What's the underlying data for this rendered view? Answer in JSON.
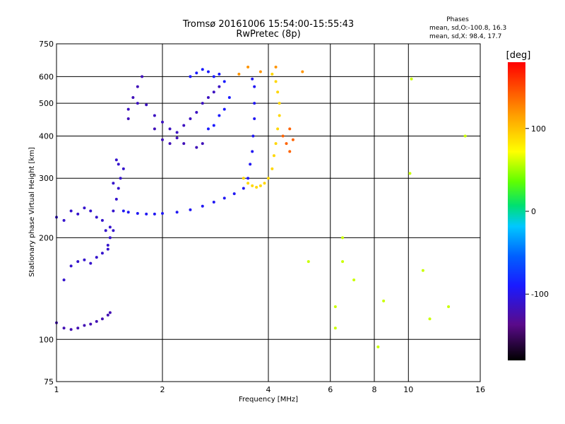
{
  "title_line1": "Tromsø 20161006 15:54:00-15:55:43",
  "title_line2": "RwPretec (8p)",
  "stats": {
    "heading": "Phases",
    "line1": "mean, sd,O:-100.8, 16.3",
    "line2": "mean, sd,X:  98.4, 17.7"
  },
  "chart_data": {
    "type": "scatter",
    "xlabel": "Frequency [MHz]",
    "ylabel": "Stationary phase Virtual Height [km]",
    "x_scale": "log",
    "y_scale": "log",
    "xlim": [
      1,
      16
    ],
    "ylim": [
      75,
      750
    ],
    "x_ticks": [
      1,
      2,
      4,
      6,
      8,
      10,
      16
    ],
    "y_ticks": [
      75,
      100,
      200,
      300,
      400,
      500,
      600,
      750
    ],
    "grid": true,
    "colorbar": {
      "label": "[deg]",
      "range": [
        -180,
        180
      ],
      "ticks": [
        100,
        0,
        -100
      ],
      "colormap": "rainbow (black-purple-blue-cyan-green-yellow-orange-red)"
    },
    "series": [
      {
        "points": [
          [
            1.0,
            230
          ],
          [
            1.05,
            225
          ],
          [
            1.1,
            240
          ],
          [
            1.15,
            235
          ],
          [
            1.2,
            245
          ],
          [
            1.25,
            240
          ],
          [
            1.3,
            230
          ],
          [
            1.35,
            225
          ],
          [
            1.38,
            210
          ],
          [
            1.42,
            215
          ]
        ],
        "phase": -110
      },
      {
        "points": [
          [
            1.0,
            112
          ],
          [
            1.05,
            108
          ],
          [
            1.1,
            107
          ],
          [
            1.15,
            108
          ],
          [
            1.2,
            110
          ],
          [
            1.25,
            111
          ],
          [
            1.3,
            113
          ],
          [
            1.35,
            115
          ],
          [
            1.4,
            118
          ],
          [
            1.42,
            120
          ]
        ],
        "phase": -120
      },
      {
        "points": [
          [
            1.05,
            150
          ],
          [
            1.1,
            165
          ],
          [
            1.15,
            170
          ],
          [
            1.2,
            172
          ],
          [
            1.25,
            168
          ],
          [
            1.3,
            175
          ],
          [
            1.35,
            180
          ],
          [
            1.4,
            185
          ]
        ],
        "phase": -110
      },
      {
        "points": [
          [
            1.4,
            190
          ],
          [
            1.42,
            200
          ],
          [
            1.45,
            210
          ],
          [
            1.45,
            240
          ],
          [
            1.48,
            260
          ],
          [
            1.5,
            280
          ],
          [
            1.52,
            300
          ],
          [
            1.55,
            320
          ],
          [
            1.5,
            330
          ],
          [
            1.48,
            340
          ],
          [
            1.45,
            290
          ]
        ],
        "phase": -110
      },
      {
        "points": [
          [
            1.55,
            240
          ],
          [
            1.6,
            238
          ],
          [
            1.7,
            236
          ],
          [
            1.8,
            235
          ],
          [
            1.9,
            235
          ],
          [
            2.0,
            236
          ],
          [
            2.2,
            238
          ],
          [
            2.4,
            242
          ],
          [
            2.6,
            248
          ],
          [
            2.8,
            255
          ],
          [
            3.0,
            262
          ],
          [
            3.2,
            270
          ],
          [
            3.4,
            280
          ],
          [
            3.5,
            300
          ],
          [
            3.55,
            330
          ],
          [
            3.6,
            360
          ],
          [
            3.62,
            400
          ],
          [
            3.65,
            450
          ],
          [
            3.65,
            500
          ],
          [
            3.65,
            560
          ],
          [
            3.6,
            590
          ]
        ],
        "phase": -95
      },
      {
        "points": [
          [
            1.6,
            480
          ],
          [
            1.7,
            500
          ],
          [
            1.8,
            495
          ],
          [
            1.9,
            460
          ],
          [
            2.0,
            440
          ],
          [
            2.1,
            420
          ],
          [
            2.2,
            410
          ],
          [
            2.3,
            430
          ],
          [
            2.4,
            450
          ],
          [
            2.5,
            470
          ],
          [
            2.6,
            500
          ],
          [
            2.7,
            520
          ],
          [
            2.8,
            540
          ],
          [
            2.9,
            560
          ]
        ],
        "phase": -115
      },
      {
        "points": [
          [
            1.75,
            600
          ],
          [
            1.7,
            560
          ],
          [
            1.65,
            520
          ],
          [
            1.6,
            450
          ],
          [
            1.9,
            420
          ],
          [
            2.0,
            390
          ],
          [
            2.1,
            380
          ],
          [
            2.2,
            395
          ],
          [
            2.3,
            380
          ],
          [
            2.5,
            370
          ],
          [
            2.6,
            380
          ]
        ],
        "phase": -118
      },
      {
        "points": [
          [
            2.4,
            600
          ],
          [
            2.5,
            615
          ],
          [
            2.6,
            630
          ],
          [
            2.7,
            620
          ],
          [
            2.8,
            600
          ],
          [
            2.9,
            610
          ],
          [
            3.0,
            580
          ],
          [
            3.1,
            520
          ],
          [
            3.0,
            480
          ],
          [
            2.9,
            460
          ],
          [
            2.8,
            430
          ],
          [
            2.7,
            420
          ]
        ],
        "phase": -90
      },
      {
        "points": [
          [
            3.4,
            300
          ],
          [
            3.5,
            290
          ],
          [
            3.6,
            285
          ],
          [
            3.7,
            282
          ],
          [
            3.8,
            285
          ],
          [
            3.9,
            290
          ],
          [
            4.0,
            300
          ],
          [
            4.1,
            320
          ],
          [
            4.15,
            350
          ],
          [
            4.2,
            380
          ],
          [
            4.25,
            420
          ],
          [
            4.3,
            460
          ],
          [
            4.3,
            500
          ],
          [
            4.25,
            540
          ],
          [
            4.2,
            580
          ],
          [
            4.1,
            610
          ]
        ],
        "phase": 90
      },
      {
        "points": [
          [
            4.4,
            400
          ],
          [
            4.5,
            380
          ],
          [
            4.6,
            360
          ],
          [
            4.7,
            390
          ],
          [
            4.6,
            420
          ]
        ],
        "phase": 140
      },
      {
        "points": [
          [
            3.3,
            610
          ],
          [
            3.5,
            640
          ],
          [
            3.8,
            620
          ],
          [
            4.2,
            640
          ],
          [
            5.0,
            620
          ]
        ],
        "phase": 120
      },
      {
        "points": [
          [
            5.2,
            170
          ],
          [
            6.2,
            108
          ],
          [
            6.2,
            125
          ],
          [
            6.5,
            200
          ],
          [
            7.0,
            150
          ],
          [
            6.5,
            170
          ],
          [
            8.2,
            95
          ],
          [
            8.5,
            130
          ],
          [
            10.1,
            310
          ],
          [
            10.2,
            590
          ],
          [
            11.0,
            160
          ],
          [
            11.5,
            115
          ],
          [
            13.0,
            125
          ],
          [
            14.5,
            400
          ]
        ],
        "phase": 60
      }
    ]
  }
}
